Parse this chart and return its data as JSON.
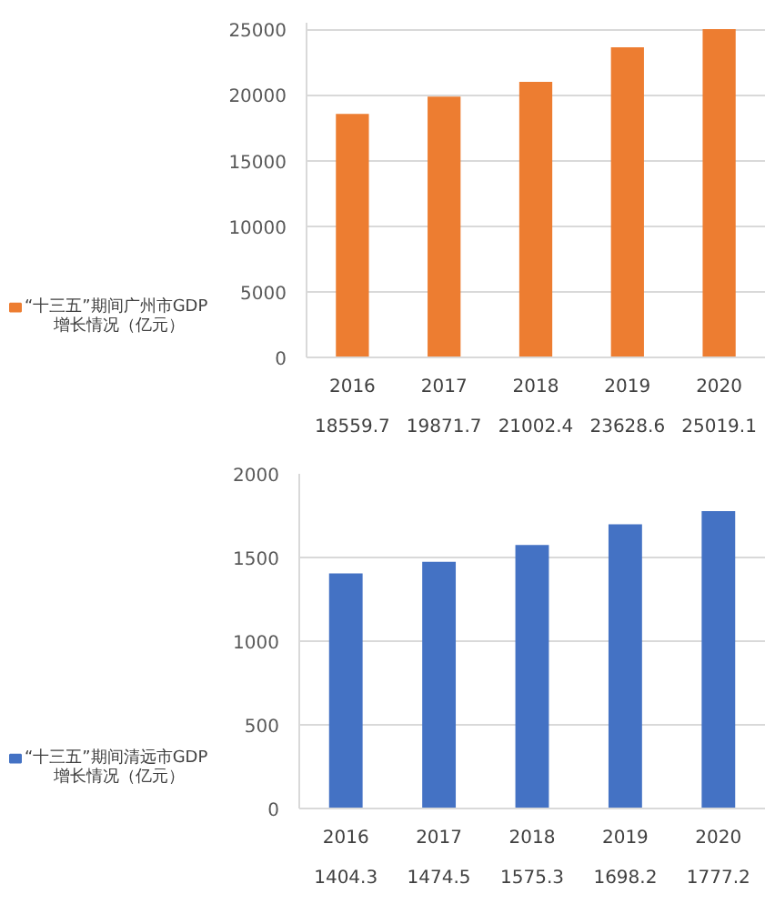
{
  "chart_data": [
    {
      "type": "bar",
      "categories": [
        "2016",
        "2017",
        "2018",
        "2019",
        "2020"
      ],
      "series": [
        {
          "name": "“十三五”期间广州市GDP增长情况（亿元）",
          "color": "#ed7d31",
          "values": [
            18559.7,
            19871.7,
            21002.4,
            23628.6,
            25019.1
          ]
        }
      ],
      "ylim": [
        0,
        25500
      ],
      "yticks": [
        0,
        5000,
        10000,
        15000,
        20000,
        25000
      ],
      "grid": "y",
      "legend": "bottom",
      "data_labels": true
    },
    {
      "type": "bar",
      "categories": [
        "2016",
        "2017",
        "2018",
        "2019",
        "2020"
      ],
      "series": [
        {
          "name": "“十三五”期间清远市GDP增长情况（亿元）",
          "color": "#4472c4",
          "values": [
            1404.3,
            1474.5,
            1575.3,
            1698.2,
            1777.2
          ]
        }
      ],
      "ylim": [
        0,
        2000
      ],
      "yticks": [
        0,
        500,
        1000,
        1500,
        2000
      ],
      "grid": "y",
      "legend": "bottom",
      "data_labels": true
    }
  ]
}
